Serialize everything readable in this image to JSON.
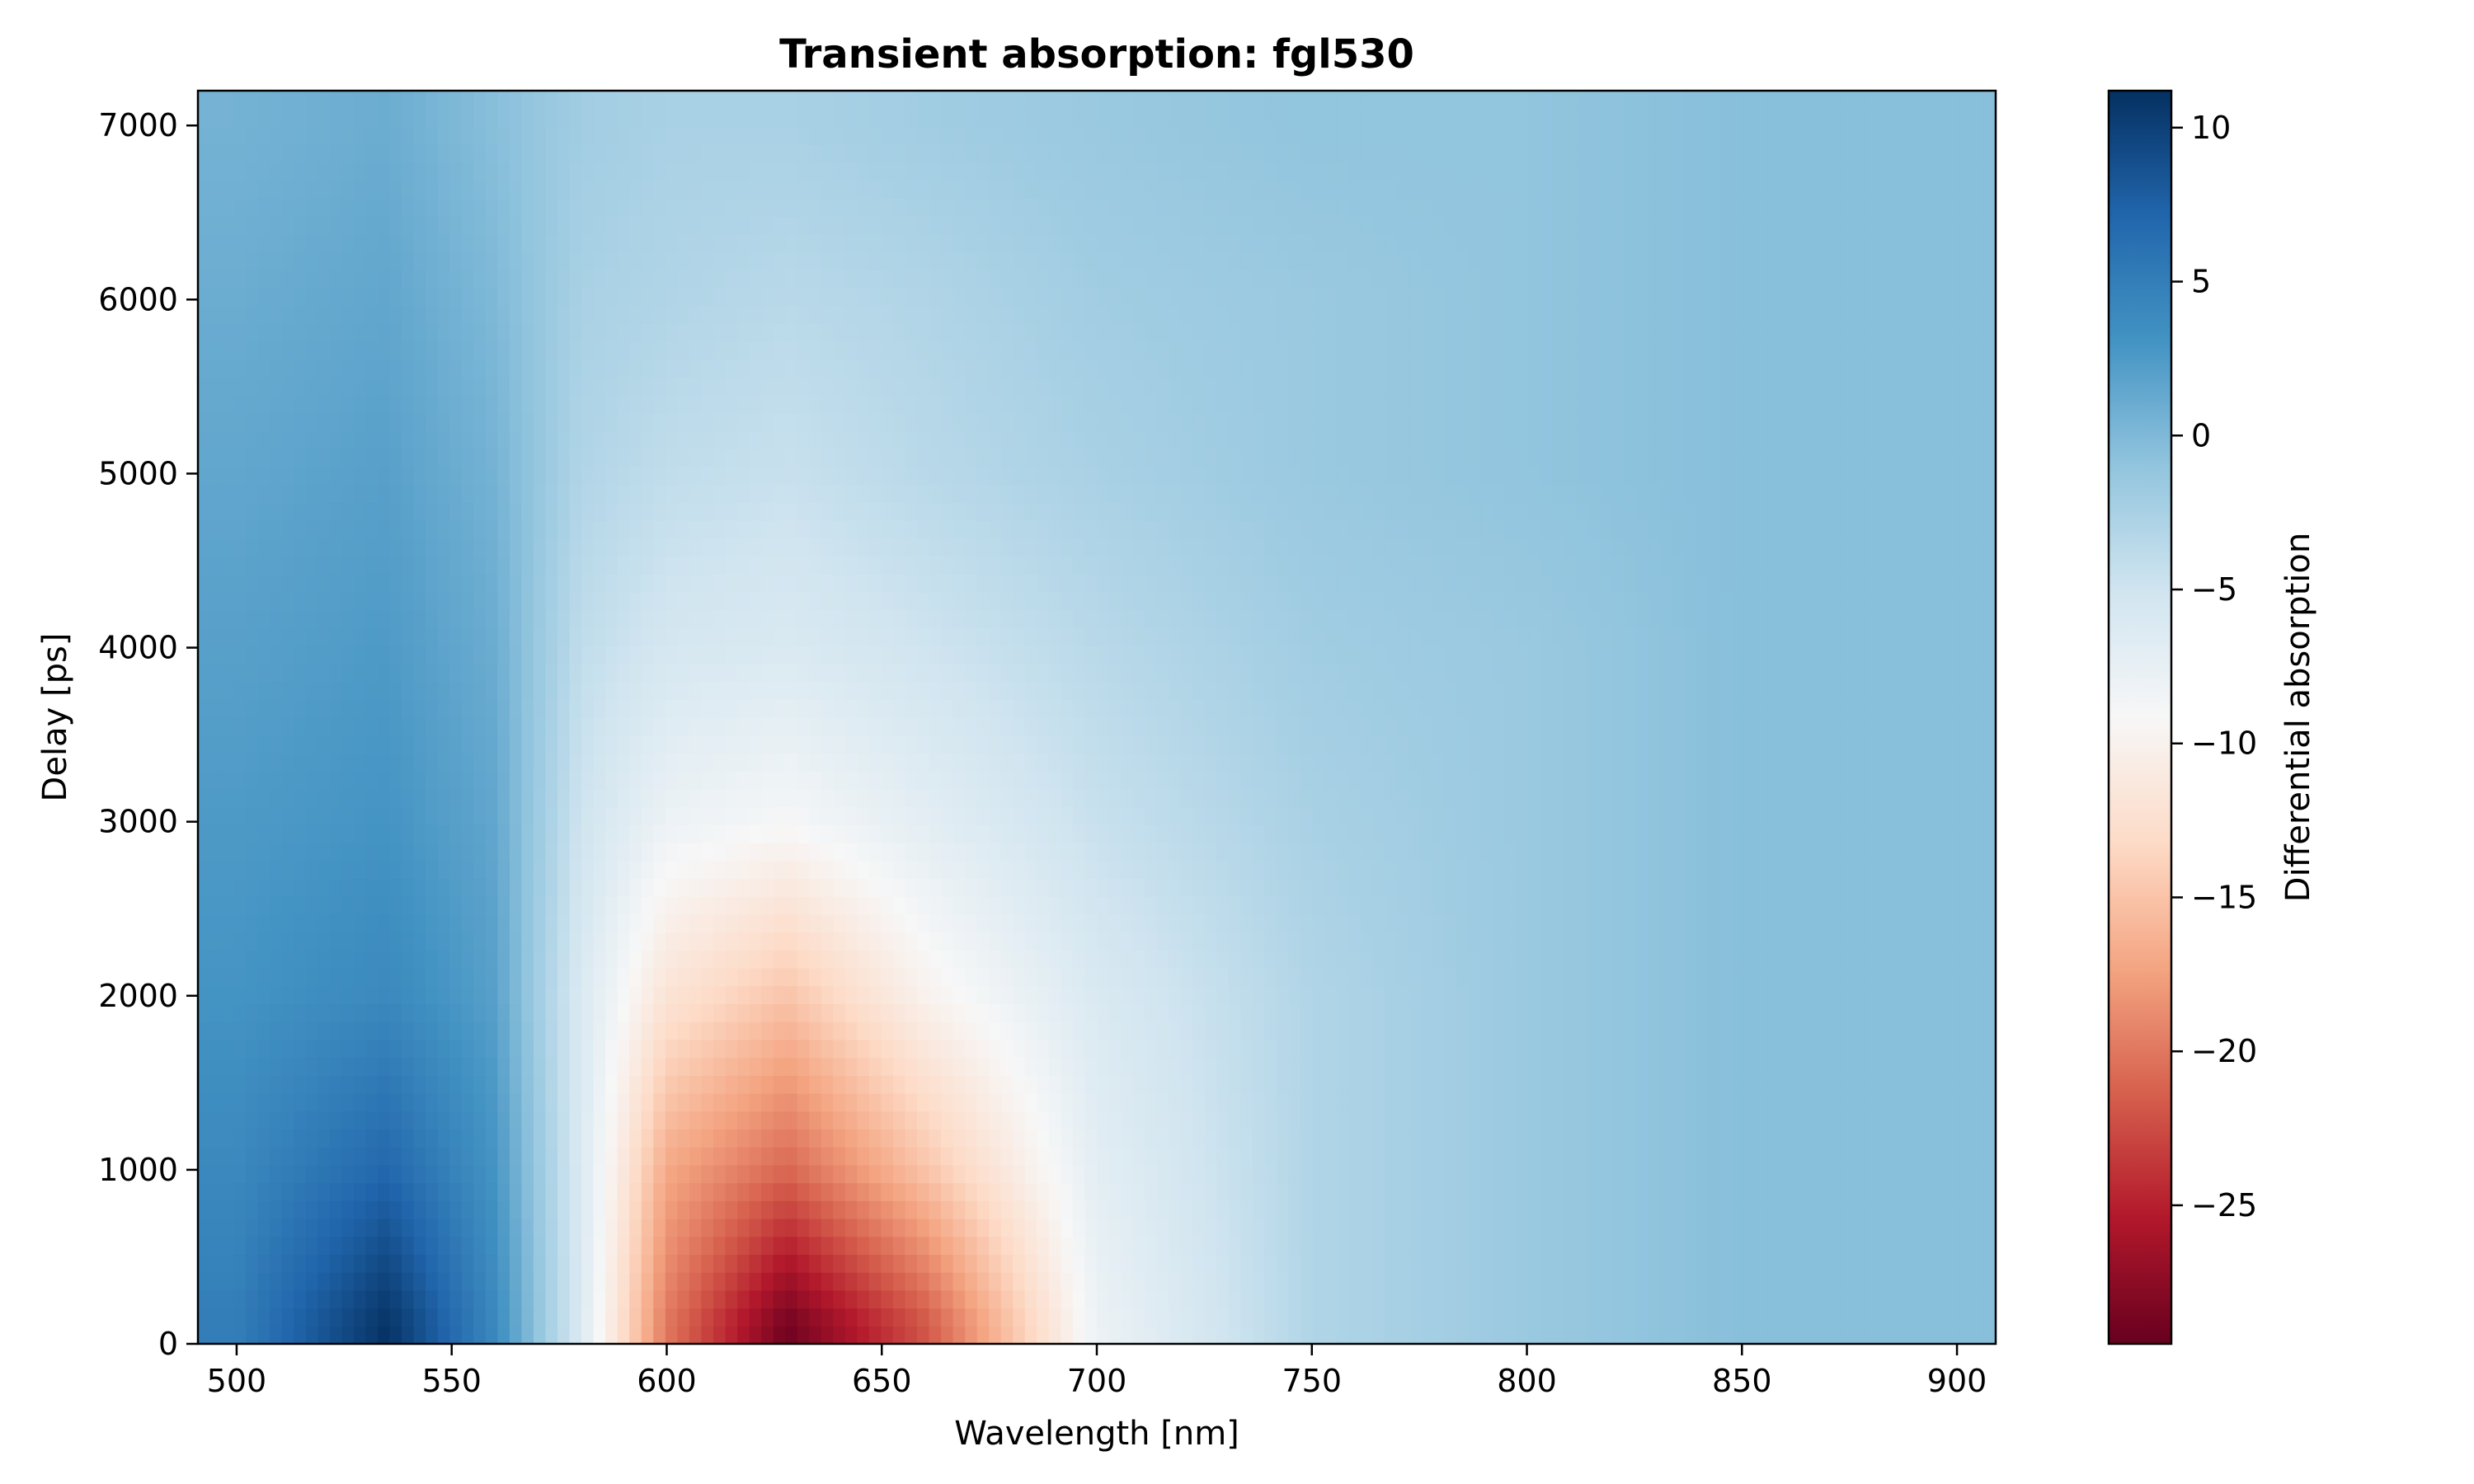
{
  "chart_data": {
    "type": "heatmap",
    "title": "Transient absorption: fgl530",
    "xlabel": "Wavelength [nm]",
    "ylabel": "Delay [ps]",
    "colorbar_label": "Differential absorption",
    "colormap": "RdBu",
    "xlim": [
      491,
      909
    ],
    "ylim": [
      0,
      7200
    ],
    "clim": [
      -29.5,
      11.2
    ],
    "x_ticks": [
      500,
      550,
      600,
      650,
      700,
      750,
      800,
      850,
      900
    ],
    "x_tick_labels": [
      "500",
      "550",
      "600",
      "650",
      "700",
      "750",
      "800",
      "850",
      "900"
    ],
    "y_ticks": [
      0,
      1000,
      2000,
      3000,
      4000,
      5000,
      6000,
      7000
    ],
    "y_tick_labels": [
      "0",
      "1000",
      "2000",
      "3000",
      "4000",
      "5000",
      "6000",
      "7000"
    ],
    "colorbar_ticks": [
      10,
      5,
      0,
      -5,
      -10,
      -15,
      -20,
      -25
    ],
    "colorbar_tick_labels": [
      "10",
      "5",
      "0",
      "−5",
      "−10",
      "−15",
      "−20",
      "−25"
    ],
    "grid": false,
    "features": [
      {
        "kind": "positive peak",
        "wavelength_nm": 535,
        "delay_ps": 150,
        "value": 11
      },
      {
        "kind": "negative peak (bleach)",
        "wavelength_nm": 628,
        "delay_ps": 100,
        "value": -29
      },
      {
        "kind": "background level",
        "value": -1
      }
    ],
    "sample_wavelengths_nm": [
      500,
      535,
      560,
      580,
      600,
      628,
      660,
      700,
      750,
      800,
      850,
      900
    ],
    "sample_delays_ps": [
      100,
      1000,
      2000,
      3000,
      4000,
      5000,
      6000,
      7000
    ],
    "sample_values": [
      [
        5,
        11,
        4,
        -6,
        -20,
        -29,
        -22,
        -8,
        -3,
        -1.5,
        -0.5,
        -0.5
      ],
      [
        4,
        7,
        3,
        -6,
        -17,
        -21,
        -15,
        -7,
        -3,
        -1.5,
        -0.5,
        -0.5
      ],
      [
        3,
        4,
        2,
        -6,
        -12,
        -15,
        -10,
        -6,
        -3,
        -1.5,
        -0.5,
        -0.5
      ],
      [
        2.5,
        3,
        1.5,
        -5,
        -8,
        -9,
        -7,
        -4.5,
        -2.5,
        -1.5,
        -0.5,
        -0.5
      ],
      [
        2,
        2.5,
        1,
        -4,
        -5.5,
        -6,
        -5,
        -3.5,
        -2,
        -1.5,
        -0.5,
        -0.5
      ],
      [
        1.5,
        2,
        0.5,
        -3,
        -4,
        -4.5,
        -3.5,
        -2.5,
        -1.5,
        -1,
        -0.5,
        -0.5
      ],
      [
        1,
        1.5,
        0,
        -2.5,
        -3,
        -3.5,
        -3,
        -2,
        -1.5,
        -1,
        -0.5,
        -0.5
      ],
      [
        0.5,
        1,
        -0.5,
        -2,
        -2.5,
        -2.5,
        -2,
        -1.5,
        -1,
        -1,
        -0.5,
        -0.5
      ]
    ]
  }
}
